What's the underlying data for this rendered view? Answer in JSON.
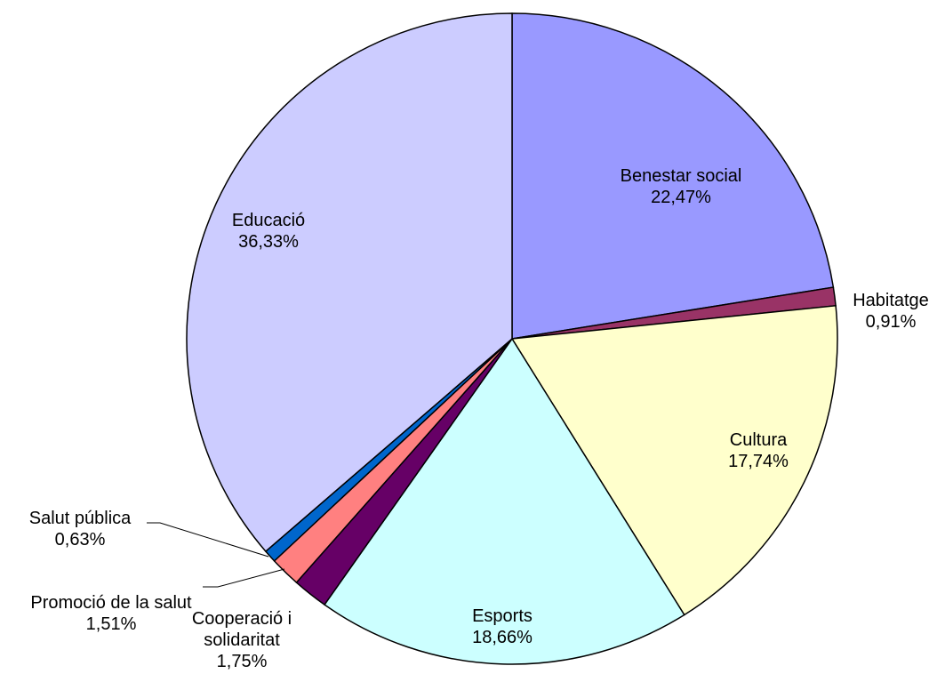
{
  "chart_data": {
    "type": "pie",
    "categories": [
      "Benestar social",
      "Habitatge",
      "Cultura",
      "Esports",
      "Cooperació i solidaritat",
      "Promoció de la salut",
      "Salut pública",
      "Educació"
    ],
    "values": [
      22.47,
      0.91,
      17.74,
      18.66,
      1.75,
      1.51,
      0.63,
      36.33
    ],
    "value_labels": [
      "22,47%",
      "0,91%",
      "17,74%",
      "18,66%",
      "1,75%",
      "1,51%",
      "0,63%",
      "36,33%"
    ],
    "colors": [
      "#9999ff",
      "#993366",
      "#ffffcc",
      "#ccffff",
      "#660066",
      "#ff8080",
      "#0066cc",
      "#ccccff"
    ]
  }
}
